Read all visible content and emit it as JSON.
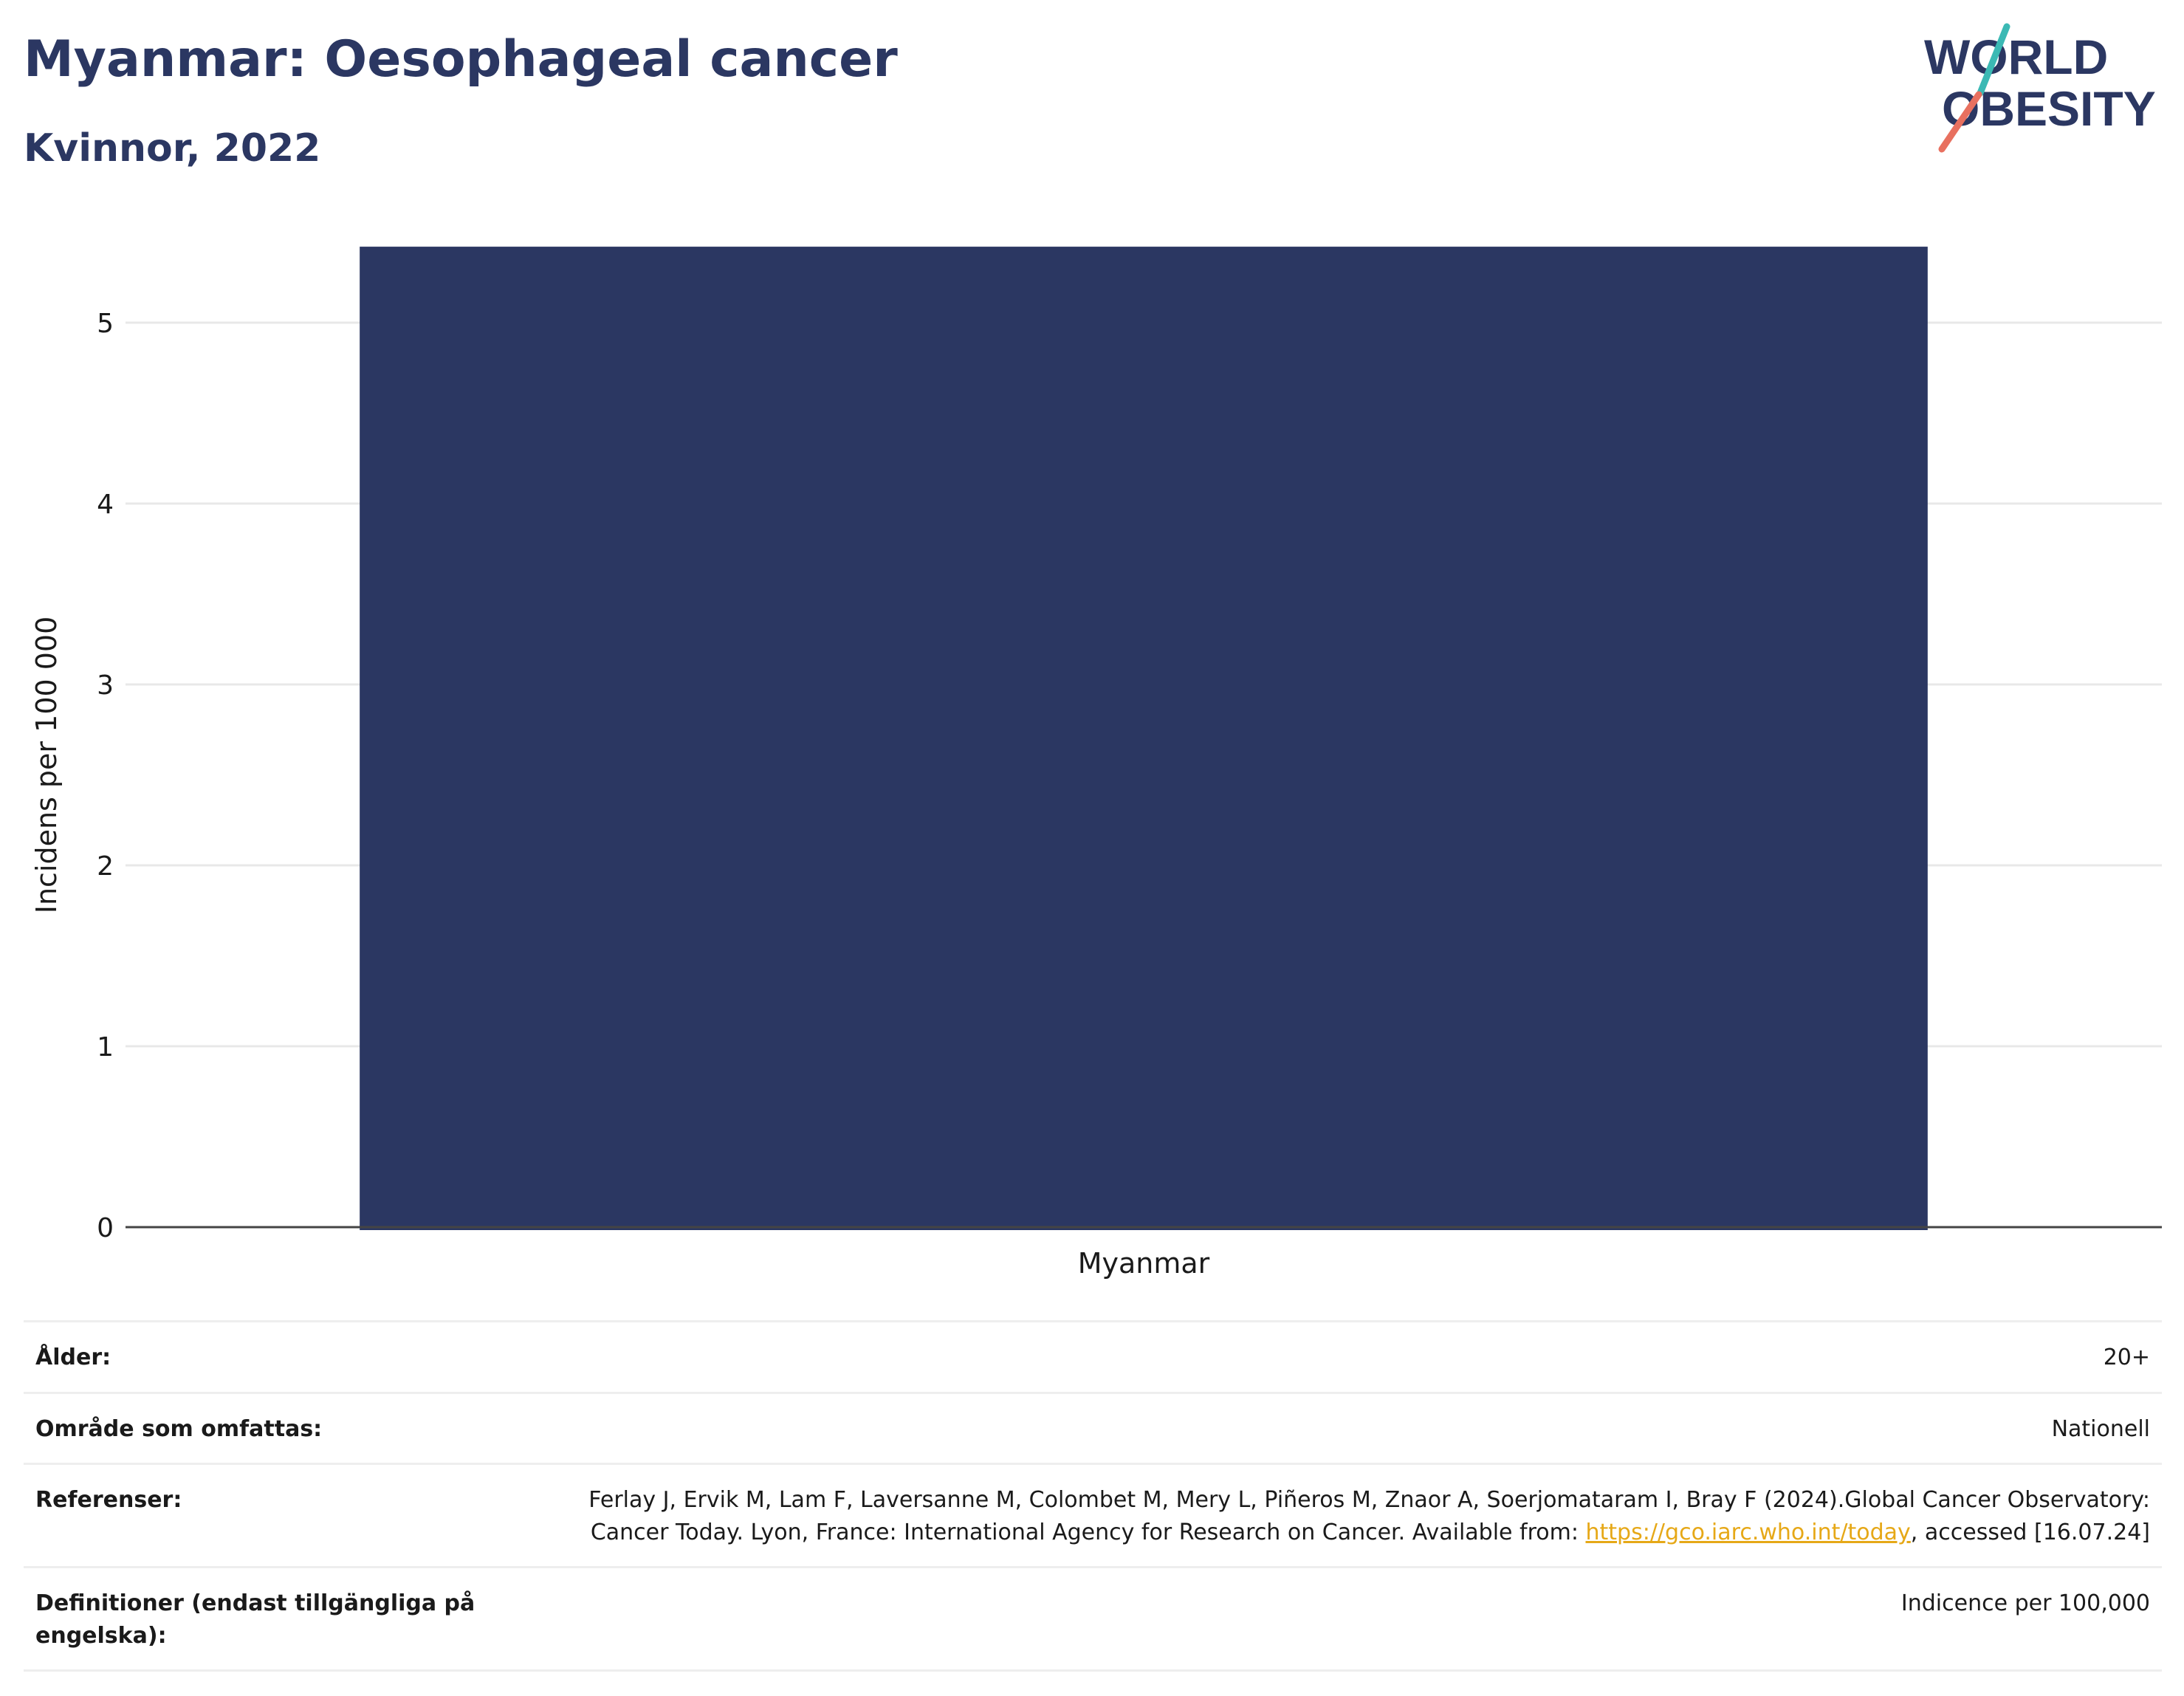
{
  "header": {
    "title": "Myanmar: Oesophageal cancer",
    "subtitle": "Kvinnor, 2022",
    "logo_text_line1": "WORLD",
    "logo_text_line2": "OBESITY"
  },
  "chart_data": {
    "type": "bar",
    "categories": [
      "Myanmar"
    ],
    "values": [
      5.42
    ],
    "ylabel": "Incidens per 100 000",
    "yticks": [
      0,
      1,
      2,
      3,
      4,
      5
    ],
    "ylim": [
      0,
      5.6
    ],
    "grid": true,
    "bar_color": "#2b3762"
  },
  "meta": {
    "rows": [
      {
        "label": "Ålder:",
        "value": "20+"
      },
      {
        "label": "Område som omfattas:",
        "value": "Nationell"
      },
      {
        "label": "Referenser:",
        "value_before": "Ferlay J, Ervik M, Lam F, Laversanne M, Colombet M, Mery L, Piñeros M, Znaor A, Soerjomataram I, Bray F (2024).Global Cancer Observatory: Cancer Today. Lyon, France: International Agency for Research on Cancer. Available from: ",
        "link": "https://gco.iarc.who.int/today",
        "value_after": ", accessed [16.07.24]"
      },
      {
        "label": "Definitioner (endast tillgängliga på engelska):",
        "value": "Indicence per 100,000"
      }
    ]
  },
  "colors": {
    "title": "#2b3762",
    "logo_teal": "#3bb9b4",
    "logo_coral": "#e8705f",
    "link": "#e6a817"
  }
}
